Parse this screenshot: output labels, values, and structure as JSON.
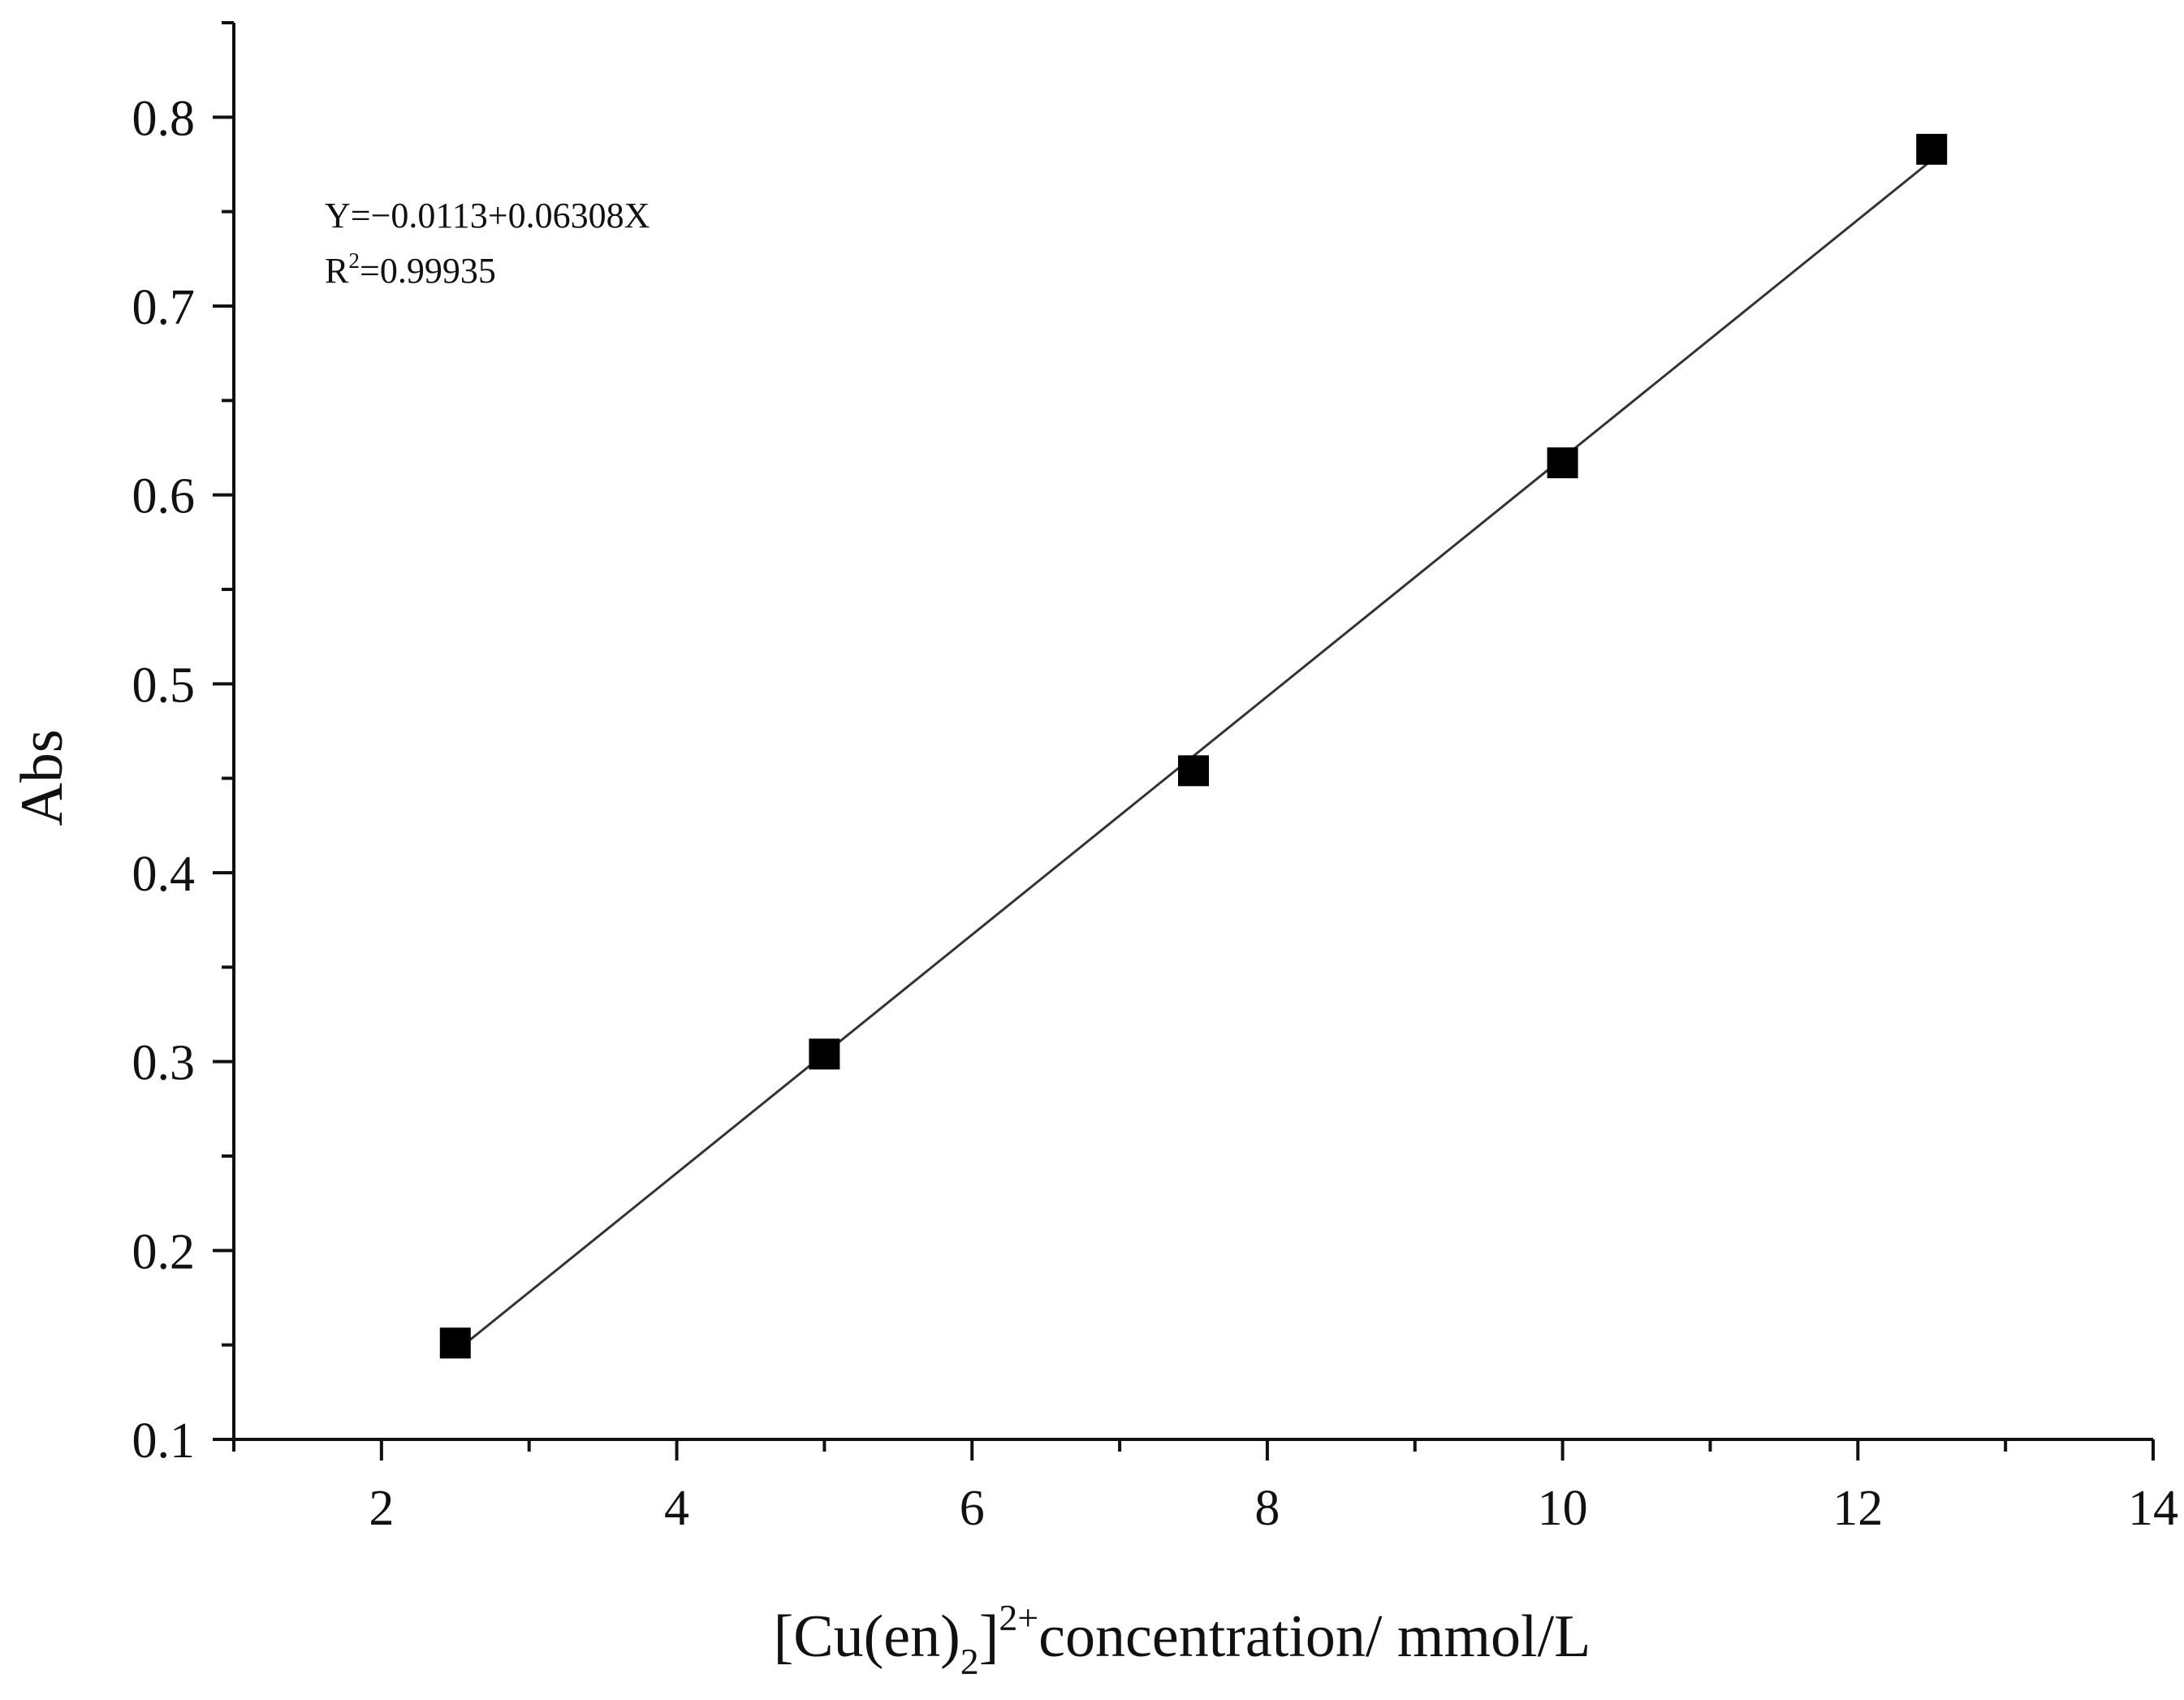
{
  "chart_data": {
    "type": "scatter",
    "title": "",
    "xlabel": {
      "prefix": "[Cu(en)",
      "subscript": "2",
      "bracket_close": "]",
      "superscript": "2+",
      "suffix": "concentration/ mmol/L"
    },
    "ylabel": "Abs",
    "xlim": [
      1,
      14
    ],
    "ylim": [
      0.1,
      0.85
    ],
    "x_ticks": [
      2,
      4,
      6,
      8,
      10,
      12,
      14
    ],
    "x_tick_labels": [
      "2",
      "4",
      "6",
      "8",
      "10",
      "12",
      "14"
    ],
    "x_minor_ticks": [
      1,
      3,
      5,
      7,
      9,
      11,
      13
    ],
    "y_ticks": [
      0.1,
      0.2,
      0.3,
      0.4,
      0.5,
      0.6,
      0.7,
      0.8
    ],
    "y_tick_labels": [
      "0.1",
      "0.2",
      "0.3",
      "0.4",
      "0.5",
      "0.6",
      "0.7",
      "0.8"
    ],
    "y_minor_ticks": [
      0.15,
      0.25,
      0.35,
      0.45,
      0.55,
      0.65,
      0.75,
      0.85
    ],
    "grid": false,
    "series": [
      {
        "name": "Abs",
        "marker": "square",
        "color": "#000000",
        "x": [
          2.5,
          5,
          7.5,
          10,
          12.5
        ],
        "y": [
          0.151,
          0.304,
          0.454,
          0.617,
          0.783
        ]
      }
    ],
    "fit": {
      "type": "linear",
      "intercept": -0.0113,
      "slope": 0.06308,
      "x_range": [
        2.5,
        12.5
      ],
      "color": "#333333"
    },
    "annotations": {
      "equation": "Y=−0.0113+0.06308X",
      "r2_prefix": "R",
      "r2_superscript": "2",
      "r2_value": "=0.99935"
    }
  }
}
